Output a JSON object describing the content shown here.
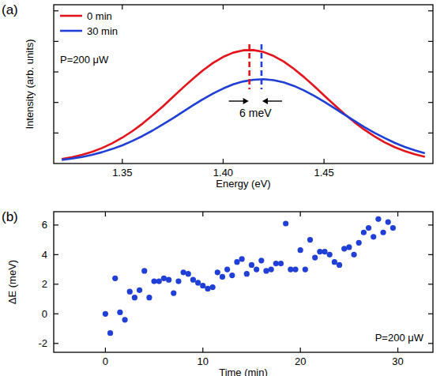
{
  "chart_data": [
    {
      "type": "line",
      "title": "(a)",
      "x_label": "Energy (eV)",
      "y_label": "Intensity (arb. units)",
      "x": [
        1.32,
        1.325,
        1.33,
        1.335,
        1.34,
        1.345,
        1.35,
        1.355,
        1.36,
        1.365,
        1.37,
        1.375,
        1.38,
        1.385,
        1.39,
        1.395,
        1.4,
        1.405,
        1.41,
        1.415,
        1.42,
        1.425,
        1.43,
        1.435,
        1.44,
        1.445,
        1.45,
        1.455,
        1.46,
        1.465,
        1.47,
        1.475,
        1.48,
        1.485,
        1.49,
        1.495,
        1.5
      ],
      "series": [
        {
          "name": "0 min",
          "color": "#e3141b",
          "values": [
            0.037,
            0.052,
            0.071,
            0.096,
            0.127,
            0.166,
            0.212,
            0.265,
            0.326,
            0.394,
            0.466,
            0.543,
            0.62,
            0.694,
            0.763,
            0.824,
            0.873,
            0.908,
            0.927,
            0.929,
            0.913,
            0.881,
            0.835,
            0.776,
            0.709,
            0.635,
            0.558,
            0.482,
            0.408,
            0.339,
            0.277,
            0.222,
            0.174,
            0.134,
            0.102,
            0.076,
            0.055
          ]
        },
        {
          "name": "30 min",
          "color": "#1f3fd6",
          "values": [
            0.03,
            0.04,
            0.054,
            0.071,
            0.093,
            0.119,
            0.149,
            0.185,
            0.225,
            0.27,
            0.319,
            0.37,
            0.423,
            0.476,
            0.527,
            0.573,
            0.614,
            0.648,
            0.672,
            0.686,
            0.69,
            0.682,
            0.664,
            0.636,
            0.599,
            0.555,
            0.507,
            0.455,
            0.402,
            0.35,
            0.299,
            0.252,
            0.209,
            0.17,
            0.136,
            0.108,
            0.084
          ]
        }
      ],
      "vlines": [
        {
          "x": 1.413,
          "color": "#e3141b"
        },
        {
          "x": 1.419,
          "color": "#1f3fd6"
        }
      ],
      "annotation": "6 meV",
      "note": "P=200 μW",
      "xlim": [
        1.316,
        1.504
      ],
      "xticks": [
        1.35,
        {
          "value": 1.4,
          "label": "1.40"
        },
        1.45
      ],
      "ylim": [
        0,
        1.3
      ],
      "yticks": [
        0.25,
        0.5,
        0.75,
        1.0,
        1.25
      ],
      "tick_labels": "x",
      "legend": "upper-left",
      "grid": false
    },
    {
      "type": "scatter",
      "title": "(b)",
      "x_label": "Time (min)",
      "y_label": "ΔE (meV)",
      "x": [
        0,
        0.5,
        1,
        1.5,
        2,
        2.5,
        3,
        3.5,
        4,
        4.5,
        5,
        5.5,
        6,
        6.5,
        7,
        7.5,
        8,
        8.5,
        9,
        9.5,
        10,
        10.5,
        11,
        11.5,
        12,
        12.5,
        13,
        13.5,
        14,
        14.5,
        15,
        15.5,
        16,
        16.5,
        17,
        17.5,
        18,
        18.5,
        19,
        19.5,
        20,
        20.5,
        21,
        21.5,
        22,
        22.5,
        23,
        23.5,
        24,
        24.5,
        25,
        25.5,
        26,
        26.5,
        27,
        27.5,
        28,
        28.5,
        29,
        29.5
      ],
      "series": [
        {
          "color": "#1f3fd6",
          "marker": "circle",
          "values": [
            0,
            -1.3,
            2.4,
            0.1,
            -0.4,
            1.5,
            1.1,
            1.6,
            2.9,
            1.1,
            2.2,
            2.2,
            2.4,
            2.3,
            1.4,
            2.2,
            2.8,
            2.7,
            2.3,
            2.1,
            1.9,
            1.7,
            1.8,
            2.8,
            2.5,
            3.0,
            2.6,
            3.5,
            3.7,
            2.7,
            3.3,
            3.0,
            3.6,
            2.9,
            3.0,
            3.4,
            3.4,
            6.1,
            3.0,
            3.0,
            4.3,
            3.0,
            5.0,
            3.8,
            4.2,
            4.2,
            4.0,
            3.5,
            3.3,
            4.4,
            4.5,
            4.0,
            4.8,
            5.5,
            5.8,
            5.2,
            6.4,
            5.5,
            6.2,
            5.8
          ]
        }
      ],
      "note": "P=200 μW",
      "xlim": [
        -5.3,
        33.6
      ],
      "xticks": [
        0,
        10,
        20,
        30
      ],
      "ylim": [
        -2.6,
        6.9
      ],
      "yticks": [
        -2,
        0,
        2,
        4,
        6
      ],
      "grid": false
    }
  ]
}
